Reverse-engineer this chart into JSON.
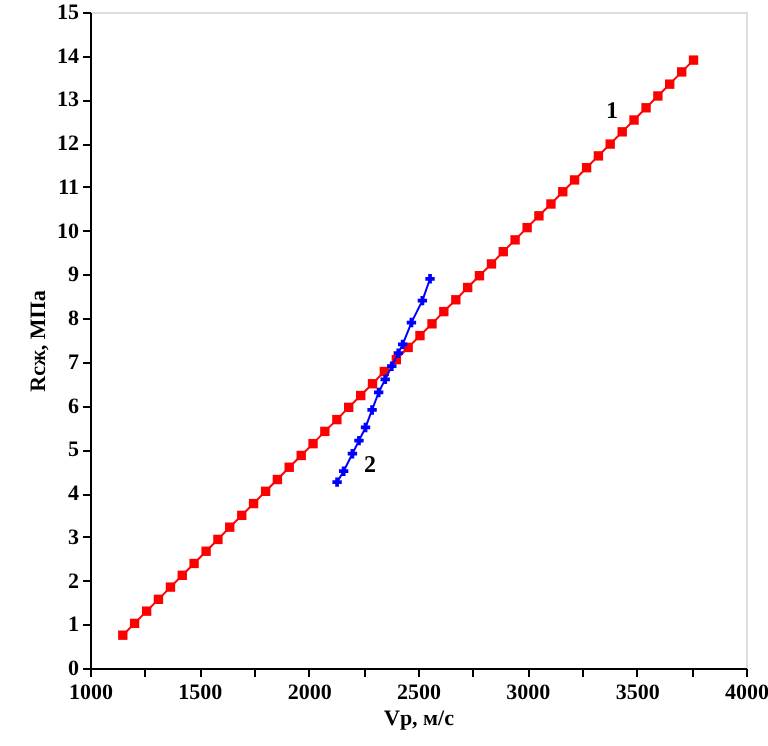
{
  "chart_data": {
    "type": "line",
    "xlabel": "Vp, м/с",
    "ylabel": "Rсж, МПа",
    "xlim": [
      1000,
      4000
    ],
    "ylim": [
      0,
      15
    ],
    "xticks": [
      1000,
      {
        "value": 1250,
        "label": null
      },
      1500,
      {
        "value": 1750,
        "label": null
      },
      2000,
      {
        "value": 2250,
        "label": null
      },
      2500,
      {
        "value": 2750,
        "label": null
      },
      3000,
      {
        "value": 3250,
        "label": null
      },
      3500,
      {
        "value": 3750,
        "label": null
      },
      4000
    ],
    "yticks": [
      0,
      1,
      2,
      3,
      4,
      5,
      6,
      7,
      8,
      9,
      10,
      11,
      12,
      13,
      14,
      15
    ],
    "grid": false,
    "line_style": "solid",
    "series": [
      {
        "color": "#ff0000",
        "marker": "square",
        "x": [
          1150,
          1204,
          1259,
          1313,
          1368,
          1422,
          1476,
          1531,
          1585,
          1639,
          1694,
          1748,
          1803,
          1857,
          1911,
          1966,
          2020,
          2074,
          2129,
          2183,
          2238,
          2292,
          2346,
          2401,
          2455,
          2509,
          2564,
          2618,
          2673,
          2727,
          2781,
          2836,
          2890,
          2944,
          2999,
          3053,
          3108,
          3162,
          3216,
          3271,
          3325,
          3379,
          3434,
          3488,
          3543,
          3597,
          3651,
          3706,
          3760
        ],
        "values": [
          0.75,
          1.02,
          1.3,
          1.57,
          1.85,
          2.12,
          2.39,
          2.67,
          2.94,
          3.22,
          3.49,
          3.76,
          4.04,
          4.31,
          4.59,
          4.86,
          5.13,
          5.41,
          5.68,
          5.96,
          6.23,
          6.5,
          6.78,
          7.05,
          7.33,
          7.6,
          7.87,
          8.15,
          8.42,
          8.7,
          8.97,
          9.24,
          9.52,
          9.79,
          10.07,
          10.34,
          10.61,
          10.89,
          11.16,
          11.44,
          11.71,
          11.98,
          12.26,
          12.53,
          12.81,
          13.08,
          13.35,
          13.63,
          13.9
        ]
      },
      {
        "color": "#0000ff",
        "marker": "cross",
        "x": [
          2130,
          2160,
          2200,
          2230,
          2260,
          2290,
          2320,
          2350,
          2380,
          2410,
          2430,
          2470,
          2520,
          2555
        ],
        "values": [
          4.25,
          4.5,
          4.9,
          5.2,
          5.5,
          5.9,
          6.3,
          6.6,
          6.9,
          7.2,
          7.4,
          7.9,
          8.4,
          8.9
        ]
      }
    ],
    "annotations": [
      "1",
      "2"
    ]
  }
}
